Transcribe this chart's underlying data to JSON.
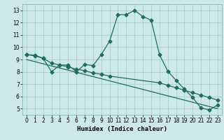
{
  "xlabel": "Humidex (Indice chaleur)",
  "bg_color": "#cde8e8",
  "line_color": "#1f6b64",
  "grid_color": "#aacece",
  "xlim": [
    -0.5,
    23.5
  ],
  "ylim": [
    4.5,
    13.5
  ],
  "yticks": [
    5,
    6,
    7,
    8,
    9,
    10,
    11,
    12,
    13
  ],
  "xticks": [
    0,
    1,
    2,
    3,
    4,
    5,
    6,
    7,
    8,
    9,
    10,
    11,
    12,
    13,
    14,
    15,
    16,
    17,
    18,
    19,
    20,
    21,
    22,
    23
  ],
  "line1_x": [
    0,
    1,
    2,
    3,
    4,
    5,
    6,
    7,
    8,
    9,
    10,
    11,
    12,
    13,
    14,
    15,
    16,
    17,
    18,
    19,
    20,
    21,
    22,
    23
  ],
  "line1_y": [
    9.4,
    9.3,
    9.1,
    8.0,
    8.55,
    8.55,
    8.0,
    8.6,
    8.5,
    9.4,
    10.5,
    12.65,
    12.65,
    13.0,
    12.5,
    12.2,
    9.4,
    8.05,
    7.3,
    6.6,
    5.9,
    5.05,
    4.9,
    5.3
  ],
  "line2_x": [
    0,
    1,
    2,
    3,
    4,
    5,
    6,
    7,
    8,
    9,
    10,
    16,
    17,
    18,
    19,
    20,
    21,
    22,
    23
  ],
  "line2_y": [
    9.4,
    9.35,
    9.1,
    8.7,
    8.55,
    8.4,
    8.2,
    8.1,
    7.9,
    7.8,
    7.65,
    7.1,
    6.9,
    6.7,
    6.5,
    6.3,
    6.1,
    5.9,
    5.7
  ],
  "line3_x": [
    0,
    23
  ],
  "line3_y": [
    9.0,
    5.0
  ]
}
